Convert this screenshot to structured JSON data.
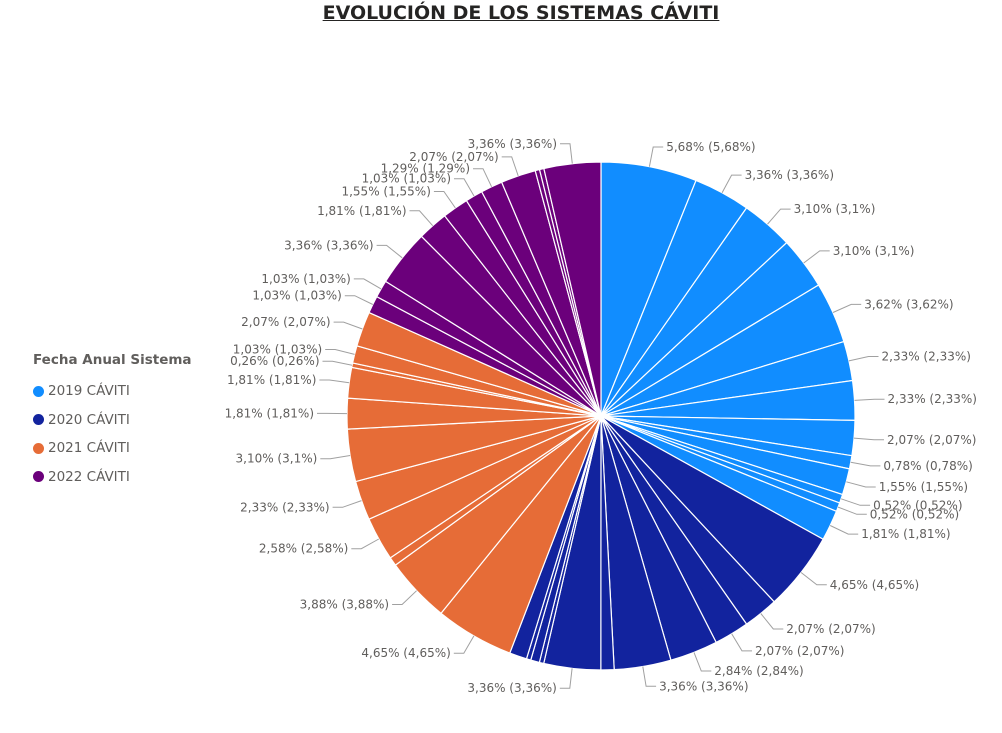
{
  "chart_data": {
    "type": "pie",
    "title": "EVOLUCIÓN DE LOS SISTEMAS CÁVITI",
    "legend": {
      "title": "Fecha Anual Sistema",
      "position": "left",
      "entries": [
        {
          "label": "2019 CÁVITI",
          "color": "#118dff"
        },
        {
          "label": "2020 CÁVITI",
          "color": "#12239e"
        },
        {
          "label": "2021 CÁVITI",
          "color": "#e66c37"
        },
        {
          "label": "2022 CÁVITI",
          "color": "#6b007b"
        }
      ]
    },
    "slices": [
      {
        "series": 0,
        "value": 5.68,
        "label": "5,68% (5,68%)"
      },
      {
        "series": 0,
        "value": 3.36,
        "label": "3,36% (3,36%)"
      },
      {
        "series": 0,
        "value": 3.1,
        "label": "3,10% (3,1%)"
      },
      {
        "series": 0,
        "value": 3.1,
        "label": "3,10% (3,1%)"
      },
      {
        "series": 0,
        "value": 3.62,
        "label": "3,62% (3,62%)"
      },
      {
        "series": 0,
        "value": 2.33,
        "label": "2,33% (2,33%)"
      },
      {
        "series": 0,
        "value": 2.33,
        "label": "2,33% (2,33%)"
      },
      {
        "series": 0,
        "value": 2.07,
        "label": "2,07% (2,07%)"
      },
      {
        "series": 0,
        "value": 0.78,
        "label": "0,78% (0,78%)"
      },
      {
        "series": 0,
        "value": 1.55,
        "label": "1,55% (1,55%)"
      },
      {
        "series": 0,
        "value": 0.52,
        "label": "0,52% (0,52%)"
      },
      {
        "series": 0,
        "value": 0.52,
        "label": "0,52% (0,52%)"
      },
      {
        "series": 0,
        "value": 1.81,
        "label": "1,81% (1,81%)"
      },
      {
        "series": 1,
        "value": 4.65,
        "label": "4,65% (4,65%)"
      },
      {
        "series": 1,
        "value": 2.07,
        "label": "2,07% (2,07%)"
      },
      {
        "series": 1,
        "value": 2.07,
        "label": "2,07% (2,07%)"
      },
      {
        "series": 1,
        "value": 2.84,
        "label": "2,84% (2,84%)"
      },
      {
        "series": 1,
        "value": 3.36,
        "label": "3,36% (3,36%)"
      },
      {
        "series": 1,
        "value": 0.78,
        "label": ""
      },
      {
        "series": 1,
        "value": 3.36,
        "label": "3,36% (3,36%)"
      },
      {
        "series": 1,
        "value": 0.26,
        "label": ""
      },
      {
        "series": 1,
        "value": 0.52,
        "label": ""
      },
      {
        "series": 1,
        "value": 0.26,
        "label": ""
      },
      {
        "series": 1,
        "value": 1.03,
        "label": ""
      },
      {
        "series": 2,
        "value": 4.65,
        "label": "4,65% (4,65%)"
      },
      {
        "series": 2,
        "value": 3.88,
        "label": "3,88% (3,88%)"
      },
      {
        "series": 2,
        "value": 0.52,
        "label": ""
      },
      {
        "series": 2,
        "value": 2.58,
        "label": "2,58% (2,58%)"
      },
      {
        "series": 2,
        "value": 2.33,
        "label": "2,33% (2,33%)"
      },
      {
        "series": 2,
        "value": 3.1,
        "label": "3,10% (3,1%)"
      },
      {
        "series": 2,
        "value": 1.81,
        "label": "1,81% (1,81%)"
      },
      {
        "series": 2,
        "value": 1.81,
        "label": "1,81% (1,81%)"
      },
      {
        "series": 2,
        "value": 0.26,
        "label": "0,26% (0,26%)"
      },
      {
        "series": 2,
        "value": 1.03,
        "label": "1,03% (1,03%)"
      },
      {
        "series": 2,
        "value": 2.07,
        "label": "2,07% (2,07%)"
      },
      {
        "series": 3,
        "value": 1.03,
        "label": "1,03% (1,03%)"
      },
      {
        "series": 3,
        "value": 1.03,
        "label": "1,03% (1,03%)"
      },
      {
        "series": 3,
        "value": 3.36,
        "label": "3,36% (3,36%)"
      },
      {
        "series": 3,
        "value": 1.81,
        "label": "1,81% (1,81%)"
      },
      {
        "series": 3,
        "value": 1.55,
        "label": "1,55% (1,55%)"
      },
      {
        "series": 3,
        "value": 1.03,
        "label": "1,03% (1,03%)"
      },
      {
        "series": 3,
        "value": 1.29,
        "label": "1,29% (1,29%)"
      },
      {
        "series": 3,
        "value": 2.07,
        "label": "2,07% (2,07%)"
      },
      {
        "series": 3,
        "value": 0.26,
        "label": ""
      },
      {
        "series": 3,
        "value": 0.26,
        "label": ""
      },
      {
        "series": 3,
        "value": 3.36,
        "label": "3,36% (3,36%)"
      }
    ]
  }
}
